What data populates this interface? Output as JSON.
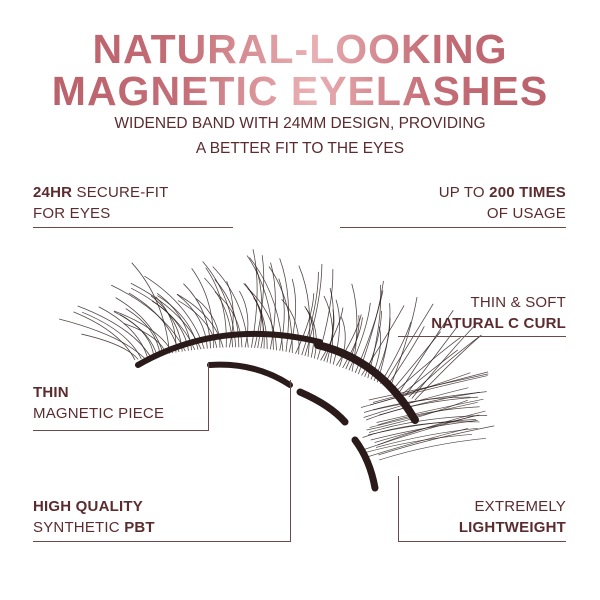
{
  "title": {
    "line1": "NATURAL-LOOKING",
    "line2": "MAGNETIC EYELASHES"
  },
  "subtitle": {
    "line1": "WIDENED BAND WITH 24MM DESIGN, PROVIDING",
    "line2": "A BETTER FIT TO THE EYES"
  },
  "features": {
    "secure_fit": {
      "bold": "24HR",
      "rest": " SECURE-FIT",
      "line2": "FOR EYES"
    },
    "usage": {
      "pre": "UP TO ",
      "bold": "200 TIMES",
      "line2": "OF USAGE"
    },
    "curl": {
      "line1": "THIN & SOFT",
      "bold": "NATURAL C CURL"
    },
    "magnetic": {
      "bold": "THIN",
      "line2": "MAGNETIC PIECE"
    },
    "quality": {
      "bold": "HIGH QUALITY",
      "pre2": "SYNTHETIC ",
      "bold2": "PBT"
    },
    "weight": {
      "line1": "EXTREMELY",
      "bold": "LIGHTWEIGHT"
    }
  },
  "colors": {
    "title_gradient": [
      "#b65c66",
      "#eab0b3"
    ],
    "text": "#5b2c2f",
    "lash": "#2a1a1a"
  }
}
